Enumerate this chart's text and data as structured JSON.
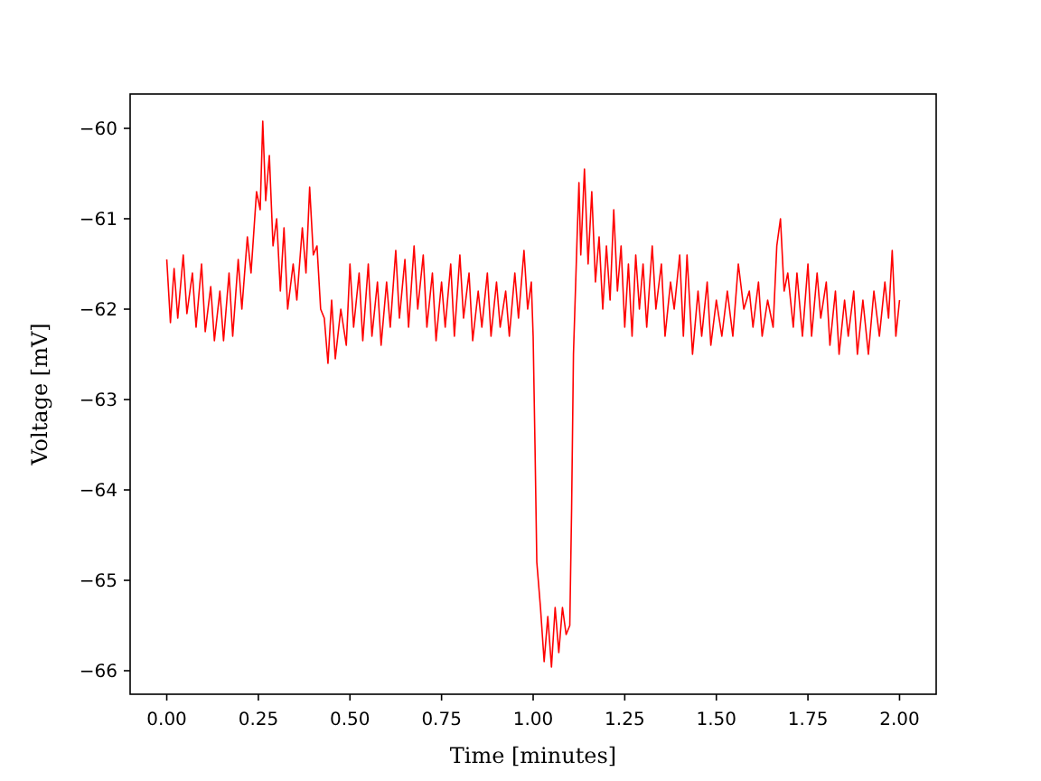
{
  "chart_data": {
    "type": "line",
    "xlabel": "Time [minutes]",
    "ylabel": "Voltage [mV]",
    "xlim": [
      -0.1,
      2.1
    ],
    "ylim": [
      -66.26,
      -59.62
    ],
    "xticks": [
      {
        "value": 0,
        "label": "0.00"
      },
      {
        "value": 0.25,
        "label": "0.25"
      },
      {
        "value": 0.5,
        "label": "0.50"
      },
      {
        "value": 0.75,
        "label": "0.75"
      },
      {
        "value": 1,
        "label": "1.00"
      },
      {
        "value": 1.25,
        "label": "1.25"
      },
      {
        "value": 1.5,
        "label": "1.50"
      },
      {
        "value": 1.75,
        "label": "1.75"
      },
      {
        "value": 2,
        "label": "2.00"
      }
    ],
    "yticks": [
      {
        "value": -66,
        "label": "−66"
      },
      {
        "value": -65,
        "label": "−65"
      },
      {
        "value": -64,
        "label": "−64"
      },
      {
        "value": -63,
        "label": "−63"
      },
      {
        "value": -62,
        "label": "−62"
      },
      {
        "value": -61,
        "label": "−61"
      },
      {
        "value": -60,
        "label": "−60"
      }
    ],
    "grid": false,
    "series": [
      {
        "color": "#ff0000",
        "x": [
          0,
          0.01,
          0.02,
          0.03,
          0.045,
          0.055,
          0.07,
          0.08,
          0.095,
          0.105,
          0.12,
          0.13,
          0.145,
          0.155,
          0.17,
          0.18,
          0.195,
          0.205,
          0.22,
          0.23,
          0.245,
          0.255,
          0.262,
          0.27,
          0.28,
          0.29,
          0.3,
          0.31,
          0.32,
          0.33,
          0.345,
          0.355,
          0.37,
          0.38,
          0.39,
          0.4,
          0.41,
          0.42,
          0.43,
          0.44,
          0.45,
          0.46,
          0.475,
          0.49,
          0.5,
          0.51,
          0.525,
          0.535,
          0.55,
          0.56,
          0.575,
          0.585,
          0.6,
          0.61,
          0.625,
          0.635,
          0.65,
          0.66,
          0.675,
          0.685,
          0.7,
          0.71,
          0.725,
          0.735,
          0.75,
          0.76,
          0.775,
          0.785,
          0.8,
          0.81,
          0.825,
          0.835,
          0.85,
          0.86,
          0.875,
          0.885,
          0.9,
          0.91,
          0.925,
          0.935,
          0.95,
          0.96,
          0.975,
          0.985,
          0.995,
          1,
          1.005,
          1.01,
          1.02,
          1.03,
          1.04,
          1.05,
          1.06,
          1.07,
          1.08,
          1.09,
          1.1,
          1.105,
          1.11,
          1.12,
          1.125,
          1.13,
          1.14,
          1.15,
          1.16,
          1.17,
          1.18,
          1.19,
          1.2,
          1.21,
          1.22,
          1.23,
          1.24,
          1.25,
          1.26,
          1.27,
          1.28,
          1.29,
          1.3,
          1.31,
          1.325,
          1.335,
          1.35,
          1.36,
          1.375,
          1.385,
          1.4,
          1.41,
          1.42,
          1.435,
          1.45,
          1.46,
          1.475,
          1.485,
          1.5,
          1.515,
          1.53,
          1.545,
          1.56,
          1.575,
          1.59,
          1.6,
          1.615,
          1.625,
          1.64,
          1.655,
          1.665,
          1.675,
          1.685,
          1.695,
          1.71,
          1.72,
          1.735,
          1.75,
          1.76,
          1.775,
          1.785,
          1.8,
          1.81,
          1.825,
          1.835,
          1.85,
          1.86,
          1.875,
          1.885,
          1.9,
          1.915,
          1.93,
          1.945,
          1.96,
          1.97,
          1.98,
          1.99,
          2
        ],
        "values": [
          -61.45,
          -62.15,
          -61.55,
          -62.1,
          -61.4,
          -62.05,
          -61.6,
          -62.2,
          -61.5,
          -62.25,
          -61.75,
          -62.35,
          -61.8,
          -62.35,
          -61.6,
          -62.3,
          -61.45,
          -62,
          -61.2,
          -61.6,
          -60.7,
          -60.9,
          -59.92,
          -60.8,
          -60.3,
          -61.3,
          -61,
          -61.8,
          -61.1,
          -62,
          -61.5,
          -61.9,
          -61.1,
          -61.6,
          -60.65,
          -61.4,
          -61.3,
          -62,
          -62.1,
          -62.6,
          -61.9,
          -62.55,
          -62,
          -62.4,
          -61.5,
          -62.2,
          -61.6,
          -62.35,
          -61.5,
          -62.3,
          -61.7,
          -62.4,
          -61.7,
          -62.2,
          -61.35,
          -62.1,
          -61.45,
          -62.2,
          -61.3,
          -62,
          -61.4,
          -62.2,
          -61.6,
          -62.35,
          -61.7,
          -62.2,
          -61.5,
          -62.3,
          -61.4,
          -62.1,
          -61.6,
          -62.35,
          -61.8,
          -62.2,
          -61.6,
          -62.3,
          -61.7,
          -62.2,
          -61.8,
          -62.3,
          -61.6,
          -62.1,
          -61.35,
          -62,
          -61.7,
          -62.3,
          -63.5,
          -64.8,
          -65.3,
          -65.9,
          -65.4,
          -65.96,
          -65.3,
          -65.8,
          -65.3,
          -65.6,
          -65.5,
          -64.2,
          -62.5,
          -61.2,
          -60.6,
          -61.4,
          -60.45,
          -61.5,
          -60.7,
          -61.7,
          -61.2,
          -62,
          -61.3,
          -61.9,
          -60.9,
          -61.8,
          -61.3,
          -62.2,
          -61.5,
          -62.3,
          -61.4,
          -62,
          -61.5,
          -62.2,
          -61.3,
          -62,
          -61.5,
          -62.3,
          -61.7,
          -62,
          -61.4,
          -62.3,
          -61.4,
          -62.5,
          -61.8,
          -62.3,
          -61.7,
          -62.4,
          -61.9,
          -62.3,
          -61.8,
          -62.3,
          -61.5,
          -62,
          -61.8,
          -62.2,
          -61.7,
          -62.3,
          -61.9,
          -62.2,
          -61.3,
          -61,
          -61.8,
          -61.6,
          -62.2,
          -61.6,
          -62.3,
          -61.5,
          -62.3,
          -61.6,
          -62.1,
          -61.7,
          -62.4,
          -61.8,
          -62.5,
          -61.9,
          -62.3,
          -61.8,
          -62.5,
          -61.9,
          -62.5,
          -61.8,
          -62.3,
          -61.7,
          -62.1,
          -61.35,
          -62.3,
          -61.9
        ]
      }
    ]
  }
}
